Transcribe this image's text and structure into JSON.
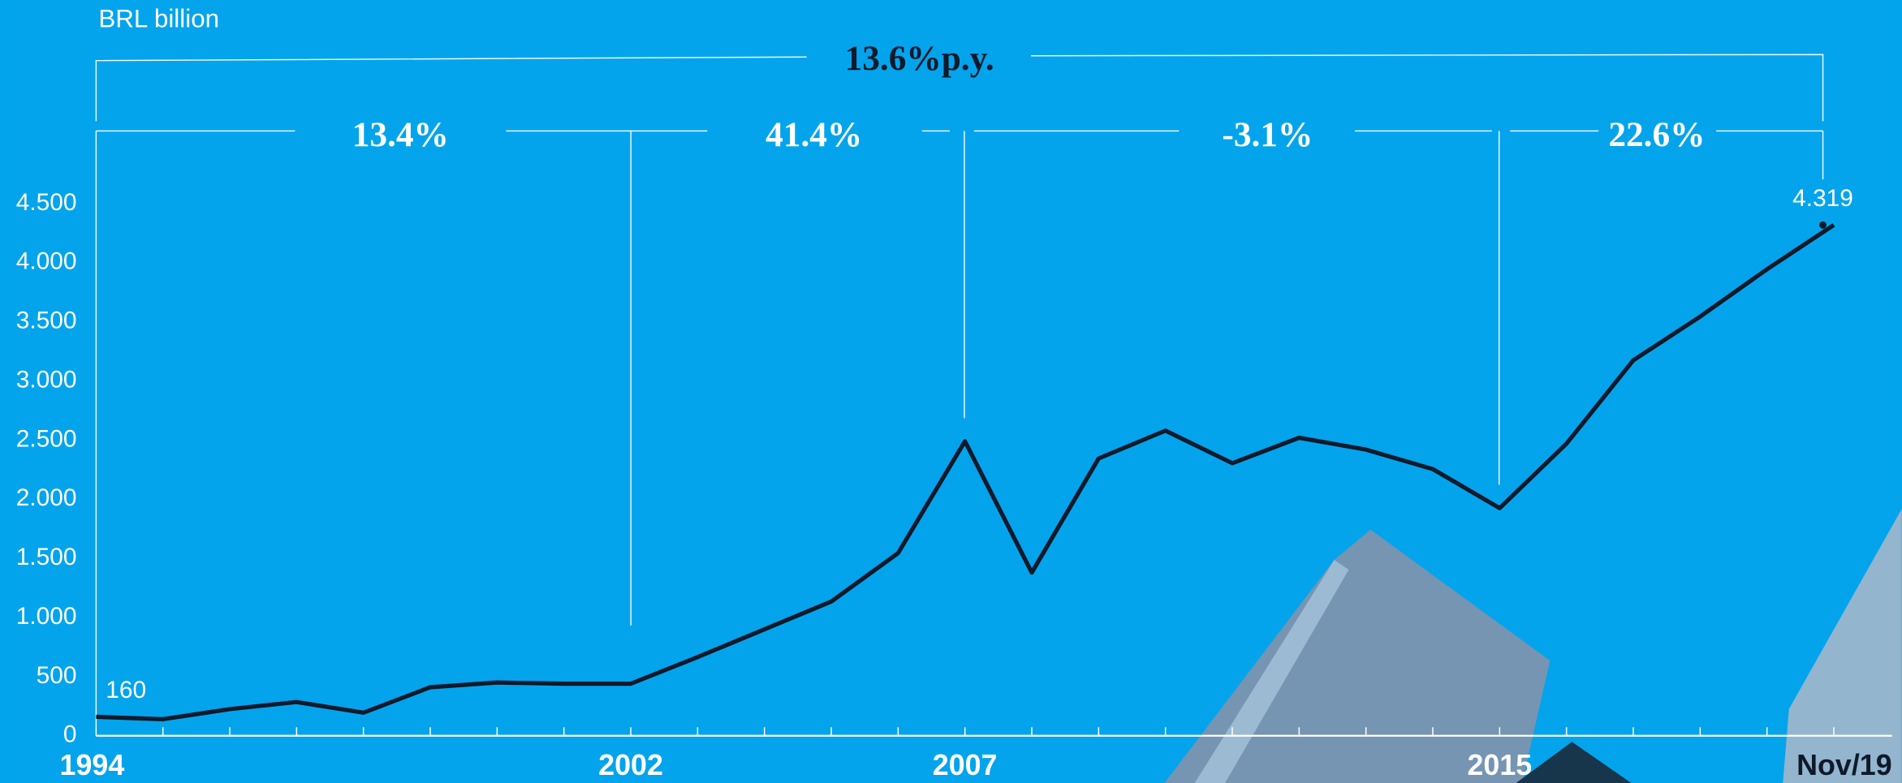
{
  "chart_data": {
    "type": "line",
    "y_label": "BRL billion",
    "categories": [
      "1994",
      null,
      null,
      null,
      null,
      null,
      null,
      null,
      "2002",
      null,
      null,
      null,
      null,
      "2007",
      null,
      null,
      null,
      null,
      null,
      null,
      null,
      "2015",
      null,
      null,
      null,
      null,
      "Nov/19"
    ],
    "series": [
      {
        "color": "#0e1a2b",
        "values": [
          160,
          140,
          225,
          285,
          195,
          410,
          450,
          440,
          440,
          665,
          900,
          1135,
          1545,
          2490,
          1380,
          2345,
          2580,
          2305,
          2520,
          2420,
          2255,
          1925,
          2470,
          3175,
          3545,
          3945,
          4319
        ],
        "value_labels": [
          "160",
          null,
          null,
          null,
          null,
          null,
          null,
          null,
          null,
          null,
          null,
          null,
          null,
          null,
          null,
          null,
          null,
          null,
          null,
          null,
          null,
          null,
          null,
          null,
          null,
          null,
          "4.319"
        ]
      }
    ],
    "ylim": [
      0,
      4500
    ],
    "yticks": [
      0,
      500,
      {
        "value": 1000,
        "label": "1.000"
      },
      {
        "value": 1500,
        "label": "1.500"
      },
      {
        "value": 2000,
        "label": "2.000"
      },
      {
        "value": 2500,
        "label": "2.500"
      },
      {
        "value": 3000,
        "label": "3.000"
      },
      {
        "value": 3500,
        "label": "3.500"
      },
      {
        "value": 4000,
        "label": "4.000"
      },
      {
        "value": 4500,
        "label": "4.500"
      }
    ],
    "annotations": [
      "13.6%p.y.",
      "13.4%",
      "41.4%",
      "-3.1%",
      "22.6%"
    ]
  }
}
